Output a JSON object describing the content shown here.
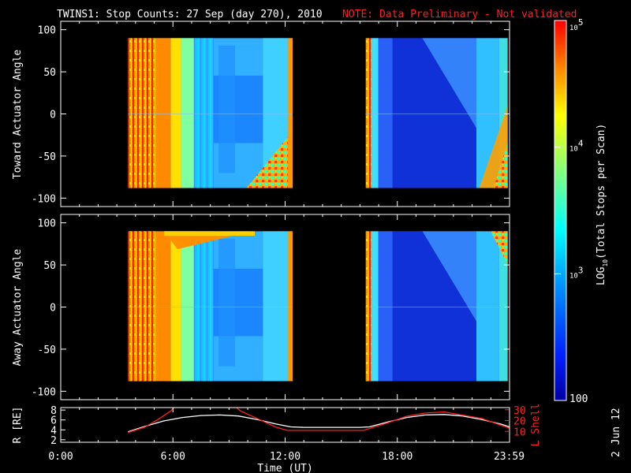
{
  "title": "TWINS1: Stop Counts: 27 Sep (day 270), 2010",
  "note": "NOTE: Data Preliminary - Not validated",
  "date_stamp": "2 Jun 12",
  "colors": {
    "note": "#ff2020",
    "orbit_r": "#ffffff",
    "orbit_l": "#ff2020",
    "background": "#000000"
  },
  "chart_data": [
    {
      "type": "heatmap",
      "name": "top-panel",
      "ylabel": "Toward Actuator Angle",
      "ylim": [
        -110,
        110
      ],
      "yticks": [
        "100",
        "50",
        "0",
        "-50",
        "-100"
      ],
      "ytick_values": [
        100,
        50,
        0,
        -50,
        -100
      ],
      "data_y_range": [
        -88,
        90
      ],
      "data_blocks_hours": [
        [
          3.6,
          12.4
        ],
        [
          16.3,
          23.9
        ]
      ],
      "log_colorscale": [
        2,
        5
      ]
    },
    {
      "type": "heatmap",
      "name": "bottom-panel",
      "ylabel": "Away Actuator Angle",
      "ylim": [
        -110,
        110
      ],
      "yticks": [
        "100",
        "50",
        "0",
        "-50",
        "-100"
      ],
      "ytick_values": [
        100,
        50,
        0,
        -50,
        -100
      ],
      "data_y_range": [
        -88,
        90
      ],
      "data_blocks_hours": [
        [
          3.6,
          12.4
        ],
        [
          16.3,
          23.9
        ]
      ],
      "log_colorscale": [
        2,
        5
      ]
    },
    {
      "type": "line",
      "name": "orbit-panel",
      "xlabel": "Time (UT)",
      "xlim": [
        0,
        24
      ],
      "xticks": [
        "0:00",
        "6:00",
        "12:00",
        "18:00",
        "23:59"
      ],
      "xtick_values": [
        0,
        6,
        12,
        18,
        23.98
      ],
      "ylabel_left": "R [RE]",
      "ylim_left": [
        1.5,
        8.5
      ],
      "yticks_left": [
        "8",
        "6",
        "4",
        "2"
      ],
      "ytick_left_values": [
        8,
        6,
        4,
        2
      ],
      "ylabel_right": "L Shell",
      "ylim_right": [
        0,
        32
      ],
      "yticks_right": [
        "30",
        "20",
        "10"
      ],
      "ytick_right_values": [
        30,
        20,
        10
      ],
      "series": [
        {
          "name": "R [RE]",
          "axis": "left",
          "color": "#ffffff",
          "x": [
            3.6,
            4.5,
            5.5,
            6.5,
            7.5,
            8.5,
            9.5,
            10.5,
            11.5,
            12.3,
            13,
            14,
            15,
            16,
            16.5,
            17.5,
            18.5,
            19.5,
            20.5,
            21.5,
            22.5,
            23.5,
            24
          ],
          "y": [
            3.6,
            4.7,
            5.8,
            6.5,
            6.9,
            7.0,
            6.8,
            6.1,
            5.2,
            4.6,
            4.5,
            4.5,
            4.5,
            4.5,
            4.6,
            5.6,
            6.5,
            7.0,
            7.1,
            6.8,
            6.1,
            5.2,
            4.6
          ]
        },
        {
          "name": "L Shell",
          "axis": "right",
          "color": "#ff2020",
          "x": [
            3.6,
            4.5,
            5.2,
            5.9,
            6.05,
            9.4,
            9.6,
            10.5,
            11.5,
            12.1,
            13,
            15,
            16.2,
            17.5,
            18.5,
            19.5,
            20.5,
            21.5,
            22.5,
            23.5,
            24
          ],
          "y": [
            9,
            14,
            21,
            29,
            32,
            32,
            29,
            22,
            14,
            11,
            11,
            11,
            11,
            18,
            24,
            27,
            28,
            25,
            22,
            16,
            13
          ]
        }
      ]
    }
  ],
  "colorbar": {
    "label": "LOG10(Total Stops per Scan)",
    "label_main": "LOG",
    "label_sub": "10",
    "label_rest": "(Total Stops per Scan)",
    "ticks": [
      {
        "base": "10",
        "exp": "5",
        "value": 5
      },
      {
        "base": "10",
        "exp": "4",
        "value": 4
      },
      {
        "base": "10",
        "exp": "3",
        "value": 3
      },
      {
        "base": "100",
        "exp": "",
        "value": 2
      }
    ],
    "range": [
      2,
      5
    ]
  }
}
